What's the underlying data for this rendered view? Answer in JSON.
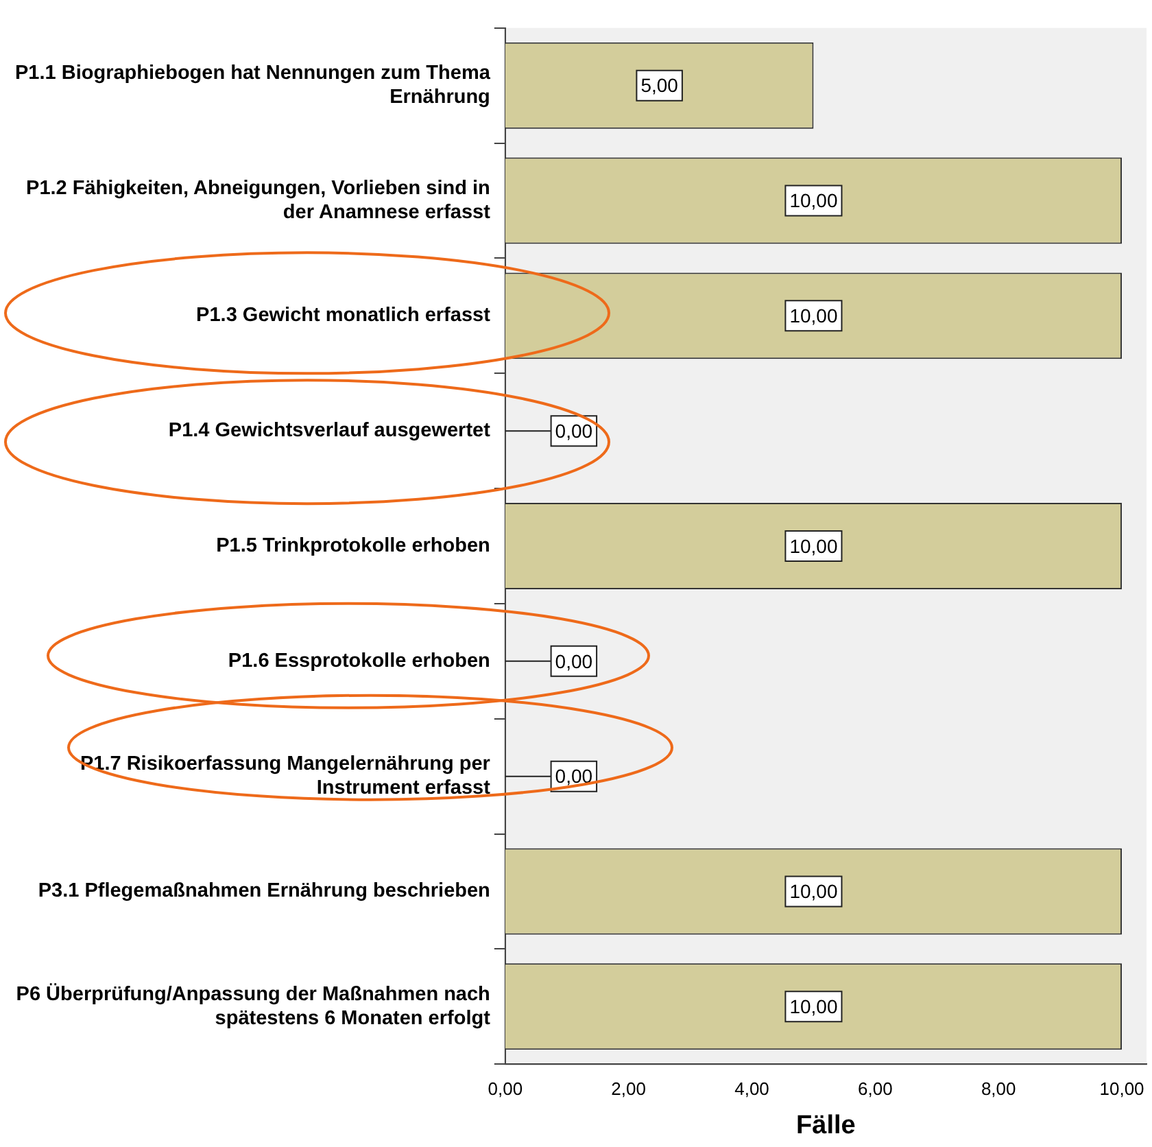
{
  "chart_data": {
    "type": "bar",
    "orientation": "horizontal",
    "xlabel": "Fälle",
    "categories": [
      "P1.1 Biographiebogen hat Nennungen zum Thema Ernährung",
      "P1.2 Fähigkeiten, Abneigungen, Vorlieben sind in der Anamnese erfasst",
      "P1.3 Gewicht monatlich erfasst",
      "P1.4 Gewichtsverlauf ausgewertet",
      "P1.5 Trinkprotokolle erhoben",
      "P1.6 Essprotokolle erhoben",
      "P1.7 Risikoerfassung Mangelernährung per Instrument erfasst",
      "P3.1 Pflegemaßnahmen Ernährung beschrieben",
      "P6 Überprüfung/Anpassung der Maßnahmen nach spätestens 6 Monaten erfolgt"
    ],
    "values": [
      5,
      10,
      10,
      0,
      10,
      0,
      0,
      10,
      10
    ],
    "value_labels": [
      "5,00",
      "10,00",
      "10,00",
      "0,00",
      "10,00",
      "0,00",
      "0,00",
      "10,00",
      "10,00"
    ],
    "color": "#d3cd9b",
    "xlim": [
      0,
      10.4
    ],
    "xticks": [
      {
        "value": 0,
        "label": "0,00"
      },
      {
        "value": 2,
        "label": "2,00"
      },
      {
        "value": 4,
        "label": "4,00"
      },
      {
        "value": 6,
        "label": "6,00"
      },
      {
        "value": 8,
        "label": "8,00"
      },
      {
        "value": 10,
        "label": "10,00"
      }
    ],
    "grid": false,
    "legend": false
  }
}
